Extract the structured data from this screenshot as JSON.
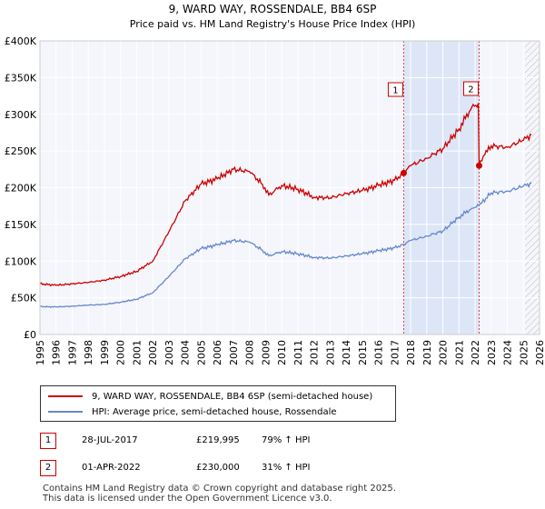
{
  "chart_data": {
    "type": "line",
    "title": "9, WARD WAY, ROSSENDALE, BB4 6SP",
    "subtitle": "Price paid vs. HM Land Registry's House Price Index (HPI)",
    "xlabel": "",
    "ylabel": "",
    "xlim": [
      1995,
      2026
    ],
    "ylim": [
      0,
      400000
    ],
    "x_ticks": [
      "1995",
      "1996",
      "1997",
      "1998",
      "1999",
      "2000",
      "2001",
      "2002",
      "2003",
      "2004",
      "2005",
      "2006",
      "2007",
      "2008",
      "2009",
      "2010",
      "2011",
      "2012",
      "2013",
      "2014",
      "2015",
      "2016",
      "2017",
      "2018",
      "2019",
      "2020",
      "2021",
      "2022",
      "2023",
      "2024",
      "2025",
      "2026"
    ],
    "y_ticks": [
      {
        "value": 0,
        "label": "£0"
      },
      {
        "value": 50000,
        "label": "£50K"
      },
      {
        "value": 100000,
        "label": "£100K"
      },
      {
        "value": 150000,
        "label": "£150K"
      },
      {
        "value": 200000,
        "label": "£200K"
      },
      {
        "value": 250000,
        "label": "£250K"
      },
      {
        "value": 300000,
        "label": "£300K"
      },
      {
        "value": 350000,
        "label": "£350K"
      },
      {
        "value": 400000,
        "label": "£400K"
      }
    ],
    "grid": true,
    "highlight_span": {
      "from": 2017.57,
      "to": 2022.25,
      "color": "#dde6f7"
    },
    "future_hatch_from": 2025.1,
    "series": [
      {
        "name": "9, WARD WAY, ROSSENDALE, BB4 6SP (semi-detached house)",
        "color": "#cc0000",
        "points": [
          [
            1995,
            69000
          ],
          [
            1996,
            67000
          ],
          [
            1997,
            69000
          ],
          [
            1998,
            71000
          ],
          [
            1999,
            74000
          ],
          [
            2000,
            79000
          ],
          [
            2001,
            86000
          ],
          [
            2002,
            100000
          ],
          [
            2003,
            140000
          ],
          [
            2004,
            182000
          ],
          [
            2005,
            205000
          ],
          [
            2006,
            212000
          ],
          [
            2007,
            225000
          ],
          [
            2008,
            222000
          ],
          [
            2008.8,
            205000
          ],
          [
            2009.2,
            190000
          ],
          [
            2010,
            203000
          ],
          [
            2011,
            198000
          ],
          [
            2012,
            187000
          ],
          [
            2013,
            186000
          ],
          [
            2014,
            192000
          ],
          [
            2015,
            196000
          ],
          [
            2016,
            203000
          ],
          [
            2017,
            210000
          ],
          [
            2017.57,
            219995
          ],
          [
            2018,
            230000
          ],
          [
            2019,
            240000
          ],
          [
            2020,
            253000
          ],
          [
            2021,
            280000
          ],
          [
            2021.8,
            310000
          ],
          [
            2022.2,
            315000
          ],
          [
            2022.25,
            230000
          ],
          [
            2022.6,
            245000
          ],
          [
            2023,
            257000
          ],
          [
            2024,
            255000
          ],
          [
            2025,
            265000
          ],
          [
            2025.5,
            272000
          ]
        ]
      },
      {
        "name": "HPI: Average price, semi-detached house, Rossendale",
        "color": "#6688cc",
        "points": [
          [
            1995,
            38000
          ],
          [
            1996,
            37500
          ],
          [
            1997,
            38500
          ],
          [
            1998,
            40000
          ],
          [
            1999,
            41000
          ],
          [
            2000,
            44000
          ],
          [
            2001,
            48000
          ],
          [
            2002,
            57000
          ],
          [
            2003,
            79000
          ],
          [
            2004,
            103000
          ],
          [
            2005,
            117000
          ],
          [
            2006,
            122000
          ],
          [
            2007,
            128000
          ],
          [
            2008,
            126000
          ],
          [
            2008.8,
            115000
          ],
          [
            2009.2,
            107000
          ],
          [
            2010,
            113000
          ],
          [
            2011,
            110000
          ],
          [
            2012,
            105000
          ],
          [
            2013,
            104000
          ],
          [
            2014,
            107000
          ],
          [
            2015,
            110000
          ],
          [
            2016,
            114000
          ],
          [
            2017,
            118000
          ],
          [
            2017.57,
            122800
          ],
          [
            2018,
            128000
          ],
          [
            2019,
            134000
          ],
          [
            2020,
            141000
          ],
          [
            2021,
            160000
          ],
          [
            2021.8,
            172000
          ],
          [
            2022.25,
            175500
          ],
          [
            2023,
            193000
          ],
          [
            2024,
            195000
          ],
          [
            2025,
            202000
          ],
          [
            2025.5,
            206000
          ]
        ]
      }
    ],
    "annotations": [
      {
        "label": "1",
        "x": 2017.57,
        "y": 219995
      },
      {
        "label": "2",
        "x": 2022.25,
        "y": 230000
      }
    ]
  },
  "legend": {
    "items": [
      {
        "label": "9, WARD WAY, ROSSENDALE, BB4 6SP (semi-detached house)",
        "color": "#cc0000"
      },
      {
        "label": "HPI: Average price, semi-detached house, Rossendale",
        "color": "#6688cc"
      }
    ]
  },
  "sales": [
    {
      "num": "1",
      "date": "28-JUL-2017",
      "price": "£219,995",
      "hpi": "79% ↑ HPI"
    },
    {
      "num": "2",
      "date": "01-APR-2022",
      "price": "£230,000",
      "hpi": "31% ↑ HPI"
    }
  ],
  "footer": {
    "line1": "Contains HM Land Registry data © Crown copyright and database right 2025.",
    "line2": "This data is licensed under the Open Government Licence v3.0."
  }
}
